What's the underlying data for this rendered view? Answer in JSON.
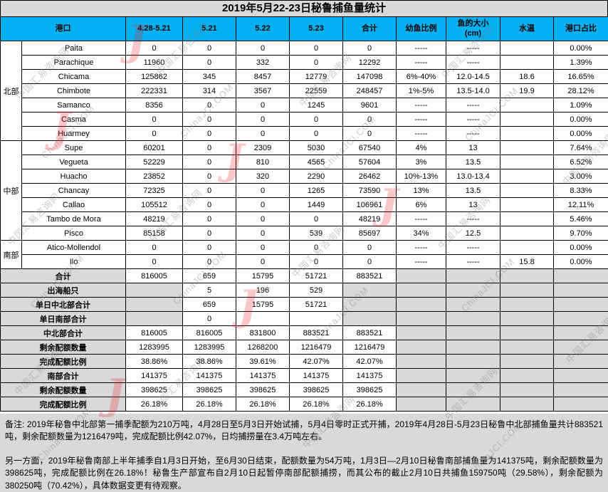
{
  "title": "2019年5月22-23日秘鲁捕鱼量统计",
  "table": {
    "headers": [
      "港口",
      "4.28-5.21",
      "5.21",
      "5.22",
      "5.23",
      "合计",
      "幼鱼比例",
      "鱼的大小\n(cm)",
      "水温",
      "港口占比"
    ],
    "regions": [
      {
        "name": "北部",
        "rows": 7
      },
      {
        "name": "中部",
        "rows": 7
      },
      {
        "name": "南部",
        "rows": 2
      }
    ],
    "ports": [
      {
        "region": "北部",
        "name": "Paita",
        "values": [
          "0",
          "0",
          "0",
          "0",
          "0"
        ],
        "juvenile": "-----",
        "size": "-----",
        "temp": "",
        "share": "0.00%"
      },
      {
        "region": "北部",
        "name": "Parachique",
        "values": [
          "11960",
          "0",
          "332",
          "0",
          "12292"
        ],
        "juvenile": "-----",
        "size": "-----",
        "temp": "",
        "share": "1.39%"
      },
      {
        "region": "北部",
        "name": "Chicama",
        "values": [
          "125862",
          "345",
          "8457",
          "12779",
          "147098"
        ],
        "juvenile": "6%-40%",
        "size": "12.0-14.5",
        "temp": "18.6",
        "share": "16.65%"
      },
      {
        "region": "北部",
        "name": "Chimbote",
        "values": [
          "222331",
          "314",
          "3567",
          "22559",
          "248457"
        ],
        "juvenile": "1%-5%",
        "size": "13.5-14.0",
        "temp": "19.9",
        "share": "28.12%"
      },
      {
        "region": "北部",
        "name": "Samanco",
        "values": [
          "8356",
          "0",
          "0",
          "1245",
          "9601"
        ],
        "juvenile": "-----",
        "size": "-----",
        "temp": "",
        "share": "1.09%"
      },
      {
        "region": "北部",
        "name": "Casma",
        "values": [
          "0",
          "0",
          "0",
          "0",
          "0"
        ],
        "juvenile": "-----",
        "size": "-----",
        "temp": "",
        "share": "0.00%"
      },
      {
        "region": "北部",
        "name": "Huarmey",
        "values": [
          "0",
          "0",
          "0",
          "0",
          "0"
        ],
        "juvenile": "-----",
        "size": "-----",
        "temp": "",
        "share": "0.00%"
      },
      {
        "region": "中部",
        "name": "Supe",
        "values": [
          "60201",
          "0",
          "2309",
          "5030",
          "67540"
        ],
        "juvenile": "4%",
        "size": "13",
        "temp": "",
        "share": "7.64%"
      },
      {
        "region": "中部",
        "name": "Vegueta",
        "values": [
          "52229",
          "0",
          "810",
          "4565",
          "57604"
        ],
        "juvenile": "3%",
        "size": "13.5",
        "temp": "",
        "share": "6.52%"
      },
      {
        "region": "中部",
        "name": "Huacho",
        "values": [
          "23852",
          "0",
          "320",
          "2290",
          "26462"
        ],
        "juvenile": "10%-13%",
        "size": "13.0-13.4",
        "temp": "",
        "share": "3.00%"
      },
      {
        "region": "中部",
        "name": "Chancay",
        "values": [
          "72325",
          "0",
          "0",
          "1265",
          "73590"
        ],
        "juvenile": "13%",
        "size": "13.5",
        "temp": "",
        "share": "8.33%"
      },
      {
        "region": "中部",
        "name": "Callao",
        "values": [
          "105512",
          "0",
          "0",
          "1449",
          "106961"
        ],
        "juvenile": "6%",
        "size": "13",
        "temp": "",
        "share": "12.11%"
      },
      {
        "region": "中部",
        "name": "Tambo de Mora",
        "values": [
          "48219",
          "0",
          "0",
          "0",
          "48219"
        ],
        "juvenile": "-----",
        "size": "-----",
        "temp": "",
        "share": "5.46%"
      },
      {
        "region": "中部",
        "name": "Pisco",
        "values": [
          "85158",
          "0",
          "0",
          "539",
          "85697"
        ],
        "juvenile": "34%",
        "size": "12.5",
        "temp": "",
        "share": "9.70%"
      },
      {
        "region": "南部",
        "name": "Atico-Mollendol",
        "values": [
          "0",
          "0",
          "0",
          "0",
          "0"
        ],
        "juvenile": "-----",
        "size": "-----",
        "temp": "",
        "share": "0.00%"
      },
      {
        "region": "南部",
        "name": "Ilo",
        "values": [
          "0",
          "0",
          "0",
          "0",
          "0"
        ],
        "juvenile": "-----",
        "size": "-----",
        "temp": "15.8",
        "share": "0.00%"
      }
    ],
    "summary": [
      {
        "label": "合计",
        "values": [
          "816005",
          "659",
          "15795",
          "51721",
          "883521"
        ],
        "gray": [
          false,
          false,
          false,
          false,
          false
        ]
      },
      {
        "label": "出海船只",
        "values": [
          "",
          "5",
          "196",
          "529",
          ""
        ],
        "gray": [
          true,
          false,
          false,
          false,
          true
        ]
      },
      {
        "label": "单日中北部合计",
        "values": [
          "",
          "659",
          "15795",
          "51721",
          ""
        ],
        "gray": [
          true,
          false,
          false,
          false,
          true
        ]
      },
      {
        "label": "单日南部合计",
        "values": [
          "",
          "0",
          "",
          "",
          ""
        ],
        "gray": [
          true,
          false,
          false,
          false,
          true
        ]
      },
      {
        "label": "中北部合计",
        "values": [
          "816005",
          "816005",
          "831800",
          "883521",
          "883521"
        ],
        "gray": [
          false,
          false,
          false,
          false,
          false
        ]
      },
      {
        "label": "剩余配额数量",
        "values": [
          "1283995",
          "1283995",
          "1268200",
          "1216479",
          "1216479"
        ],
        "gray": [
          false,
          false,
          false,
          false,
          false
        ]
      },
      {
        "label": "完成配额比例",
        "values": [
          "38.86%",
          "38.86%",
          "39.61%",
          "42.07%",
          "42.07%"
        ],
        "gray": [
          false,
          false,
          false,
          false,
          false
        ]
      },
      {
        "label": "南部合计",
        "values": [
          "141375",
          "141375",
          "141375",
          "141375",
          "141375"
        ],
        "gray": [
          false,
          false,
          false,
          false,
          false
        ]
      },
      {
        "label": "剩余配额数量",
        "values": [
          "398625",
          "398625",
          "398625",
          "398625",
          "398625"
        ],
        "gray": [
          false,
          false,
          false,
          false,
          false
        ]
      },
      {
        "label": "完成配额比例",
        "values": [
          "26.18%",
          "26.18%",
          "26.18%",
          "26.18%",
          "26.18%"
        ],
        "gray": [
          false,
          false,
          false,
          false,
          false
        ]
      }
    ]
  },
  "notes": {
    "p1": "备注: 2019年秘鲁中北部第一捕季配额为210万吨，4月28日至5月3日开始试捕，5月4日零时正式开捕，2019年4月28日-5月23日秘鲁中北部捕鱼量共计883521吨，剩余配额数量为1216479吨，完成配额比例42.07%，日均捕捞量在3.4万吨左右。",
    "p2": "另一方面，2019年秘鲁南部上半年捕季自1月3日开始，至6月30日结束，配额数量为54万吨，1月3日—2月10日秘鲁南部捕鱼量为141375吨，剩余配额数量为398625吨，完成配额比例在26.18%！秘鲁生产部宣布自2月10日起暂停南部配额捕捞，而其公布的截止2月10日共捕鱼159750吨（29.58%），剩余配额为380250吨（70.42%），具体数据变更有待观察。"
  },
  "watermark": {
    "cn": "中国汇易咨询网",
    "en": "ChinaJCI.COM",
    "logo": "J"
  },
  "colors": {
    "header_bg": "#00b0f0",
    "gray_bg": "#d9d9d9",
    "title_bg": "#d9d9d9",
    "watermark_red": "#e8252a"
  }
}
